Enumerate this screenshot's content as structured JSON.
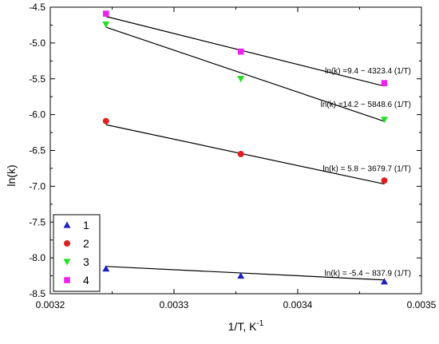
{
  "chart_data": {
    "type": "scatter",
    "xlabel": "1/T, K",
    "xlabel_superscript": "-1",
    "ylabel": "ln(k)",
    "xlim": [
      0.0032,
      0.0035
    ],
    "ylim": [
      -8.5,
      -4.5
    ],
    "x_ticks": [
      0.0032,
      0.0033,
      0.0034,
      0.0035
    ],
    "x_tick_labels": [
      "0.0032",
      "0.0033",
      "0.0034",
      "0.0035"
    ],
    "y_ticks": [
      -4.5,
      -5.0,
      -5.5,
      -6.0,
      -6.5,
      -7.0,
      -7.5,
      -8.0,
      -8.5
    ],
    "y_tick_labels": [
      "-4.5",
      "-5.0",
      "-5.5",
      "-6.0",
      "-6.5",
      "-7.0",
      "-7.5",
      "-8.0",
      "-8.5"
    ],
    "grid": false,
    "legend_position": "bottom-left",
    "series": [
      {
        "name": "1",
        "marker": "triangle-up",
        "color": "#1f1fbf",
        "x": [
          0.003245,
          0.003354,
          0.00347
        ],
        "y": [
          -8.15,
          -8.25,
          -8.33
        ],
        "fit": {
          "intercept": -5.4,
          "slope": -837.9
        },
        "equation": "ln(k) = -5.4 − 837.9 (1/T)"
      },
      {
        "name": "2",
        "marker": "circle",
        "color": "#e02020",
        "x": [
          0.003245,
          0.003354,
          0.00347
        ],
        "y": [
          -6.09,
          -6.55,
          -6.92
        ],
        "fit": {
          "intercept": 5.8,
          "slope": -3679.7
        },
        "equation": "ln(k) = 5.8 − 3679.7 (1/T)"
      },
      {
        "name": "3",
        "marker": "triangle-down",
        "color": "#22e022",
        "x": [
          0.003245,
          0.003354,
          0.00347
        ],
        "y": [
          -4.74,
          -5.5,
          -6.07
        ],
        "fit": {
          "intercept": 14.2,
          "slope": -5848.6
        },
        "equation": "ln(k) =14.2 − 5848.6 (1/T)"
      },
      {
        "name": "4",
        "marker": "square",
        "color": "#ee22ee",
        "x": [
          0.003245,
          0.003354,
          0.00347
        ],
        "y": [
          -4.59,
          -5.12,
          -5.56
        ],
        "fit": {
          "intercept": 9.4,
          "slope": -4323.4
        },
        "equation": "ln(k) =9.4 − 4323.4 (1/T)"
      }
    ]
  }
}
